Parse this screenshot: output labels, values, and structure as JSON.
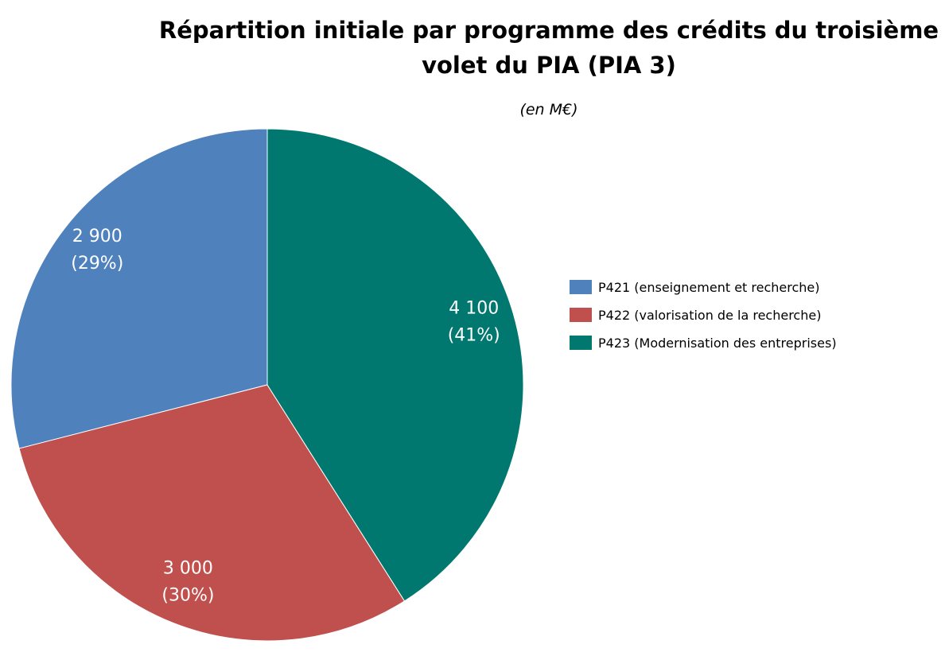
{
  "chart_data": {
    "type": "pie",
    "title": "Répartition initiale par programme des crédits du troisième volet du PIA (PIA 3)",
    "subtitle": "(en M€)",
    "categories": [
      "P421 (enseignement et recherche)",
      "P422 (valorisation de la recherche)",
      "P423 (Modernisation des entreprises)"
    ],
    "values": [
      2900,
      3000,
      4100
    ],
    "value_labels": [
      "2 900",
      "3 000",
      "4 100"
    ],
    "percent_labels": [
      "(29%)",
      "(30%)",
      "(41%)"
    ],
    "colors": [
      "#4f81bd",
      "#c0504d",
      "#00786f"
    ],
    "legend": "right"
  }
}
